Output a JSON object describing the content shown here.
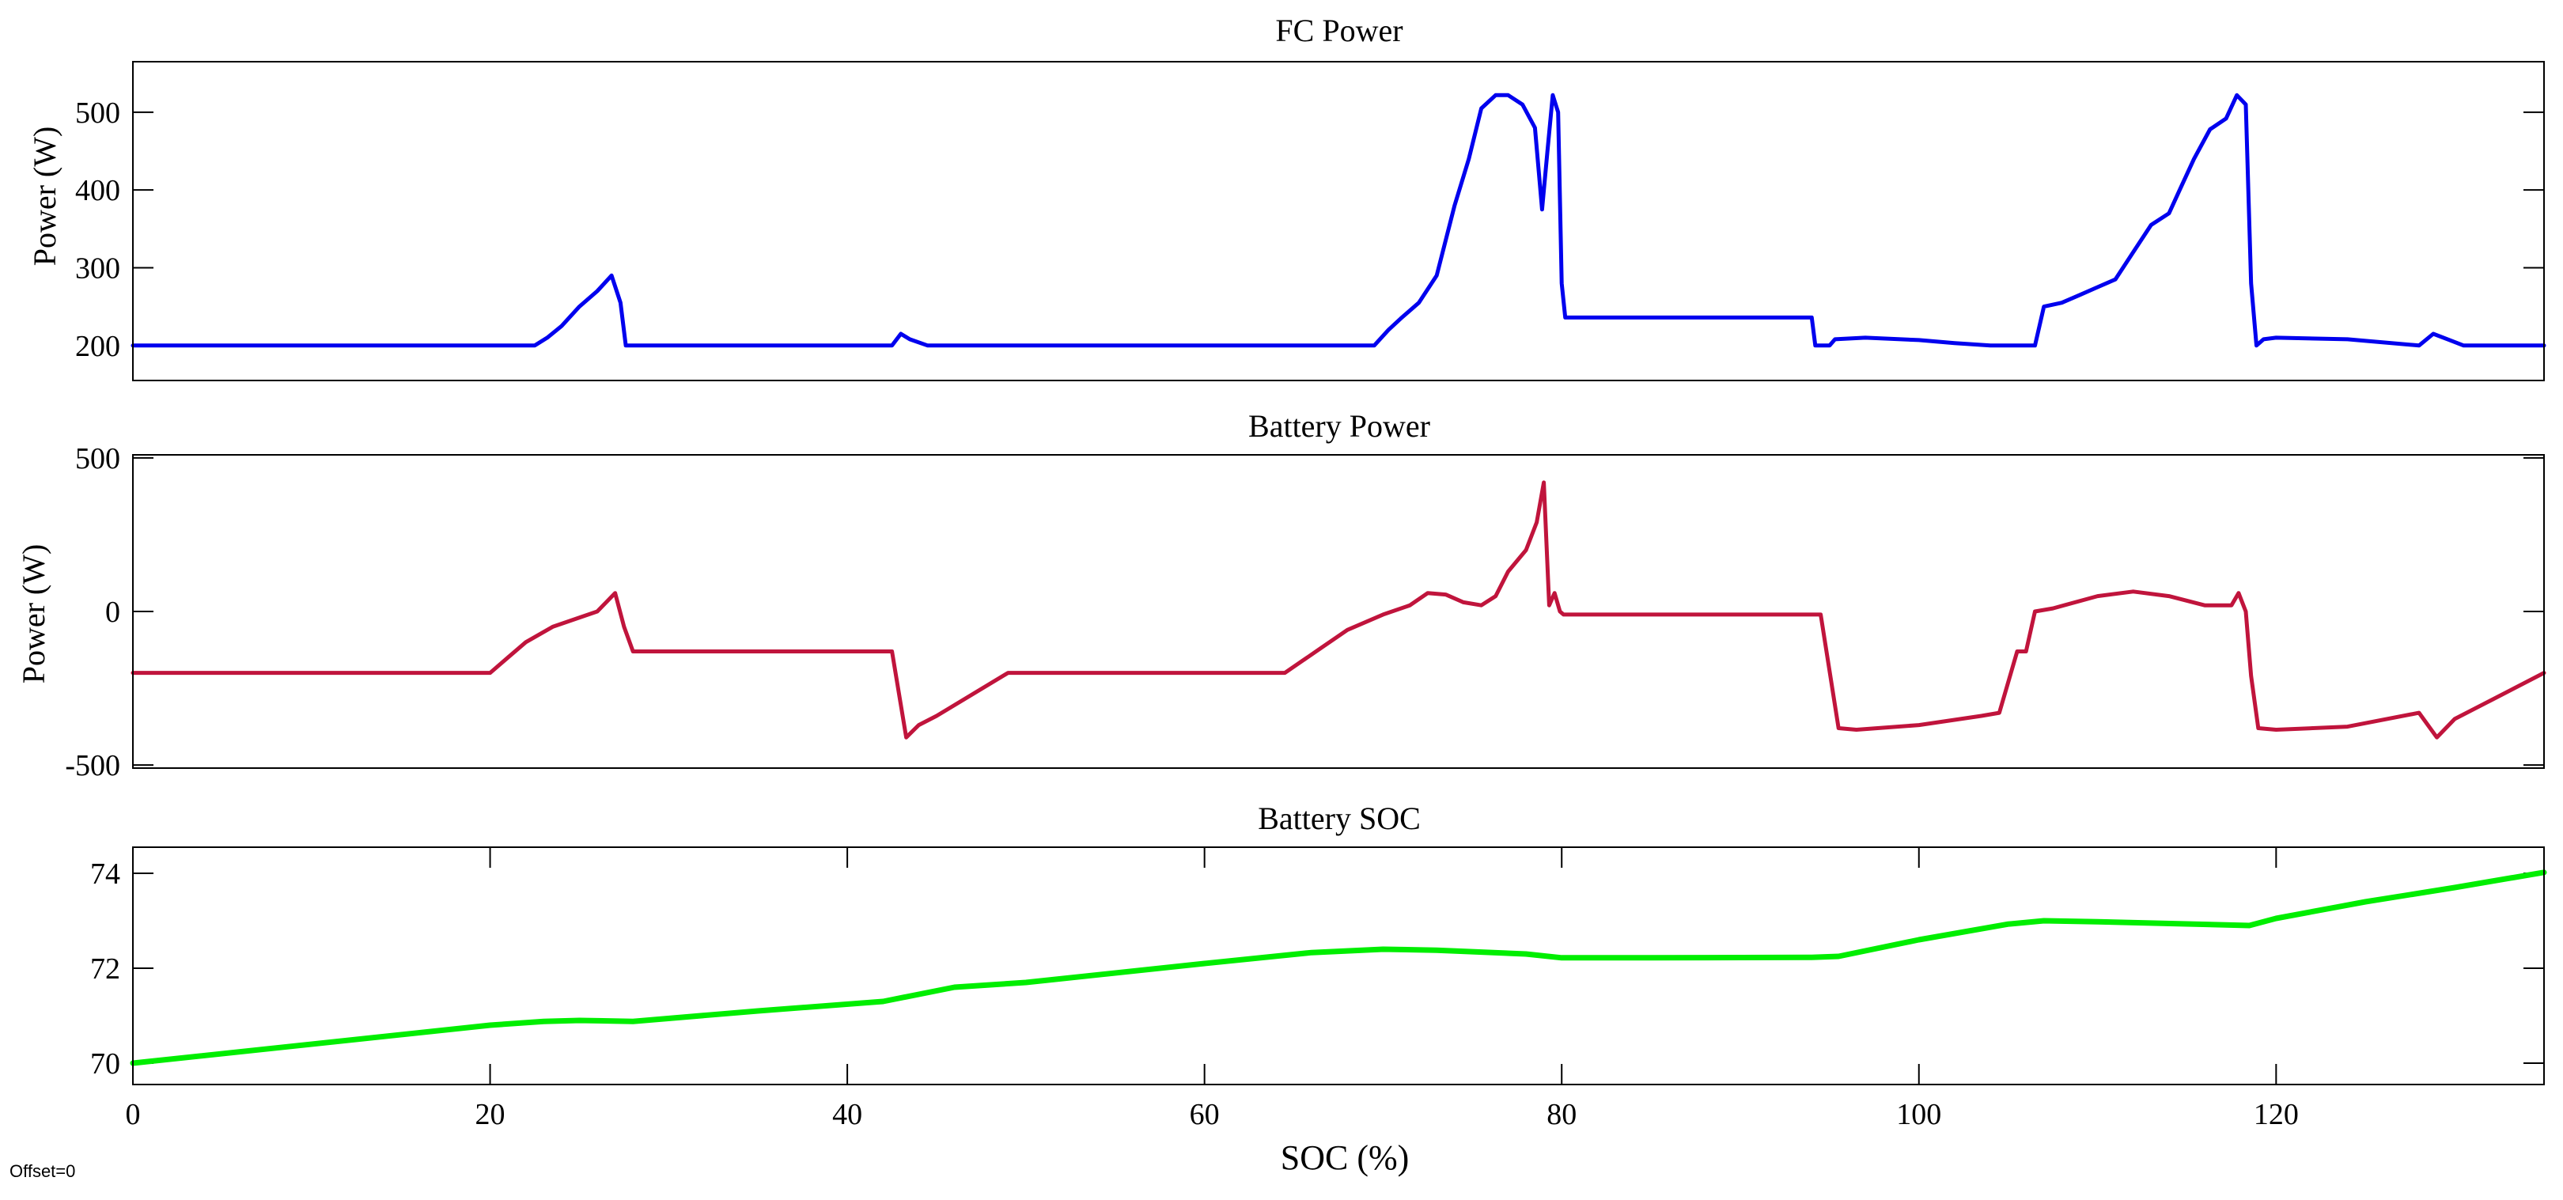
{
  "chart_data": [
    {
      "type": "line",
      "title": "FC Power",
      "ylabel": "Power (W)",
      "xlabel": "",
      "xlim": [
        0,
        135
      ],
      "ylim": [
        155,
        565
      ],
      "yticks": [
        200,
        300,
        400,
        500
      ],
      "x_tick_labels_shown": false,
      "color": "#0000ee",
      "series": [
        {
          "x": [
            0,
            22.5,
            23.2,
            24.0,
            25.0,
            26.0,
            26.8,
            27.3,
            27.6,
            30,
            42.5,
            43.0,
            43.5,
            44.5,
            46,
            60,
            69.5,
            70.3,
            71.0,
            72.0,
            73.0,
            74.0,
            74.8,
            75.5,
            76.3,
            77.0,
            77.8,
            78.5,
            78.9,
            79.2,
            79.5,
            79.8,
            80.0,
            80.2,
            85,
            94.0,
            94.2,
            95.0,
            95.3,
            97,
            100,
            102,
            104,
            106.5,
            107.0,
            108.0,
            109.0,
            110.0,
            111.0,
            112.0,
            113.0,
            114.0,
            114.6,
            115.4,
            116.3,
            117.2,
            117.8,
            118.3,
            118.6,
            118.9,
            119.3,
            120,
            124,
            128.0,
            128.8,
            129.6,
            130.5,
            135
          ],
          "y": [
            200,
            200,
            210,
            225,
            250,
            270,
            290,
            255,
            200,
            200,
            200,
            215,
            208,
            200,
            200,
            200,
            200,
            220,
            235,
            255,
            290,
            380,
            440,
            505,
            522,
            522,
            510,
            480,
            375,
            450,
            522,
            500,
            280,
            236,
            236,
            236,
            200,
            200,
            208,
            210,
            207,
            203,
            200,
            200,
            250,
            255,
            265,
            275,
            285,
            320,
            355,
            370,
            400,
            440,
            478,
            492,
            522,
            510,
            280,
            200,
            208,
            210,
            208,
            200,
            215,
            208,
            200,
            200
          ]
        }
      ]
    },
    {
      "type": "line",
      "title": "Battery Power",
      "ylabel": "Power (W)",
      "xlabel": "",
      "xlim": [
        0,
        135
      ],
      "ylim": [
        -510,
        510
      ],
      "yticks": [
        -500,
        0,
        500
      ],
      "x_tick_labels_shown": false,
      "color": "#c0143c",
      "series": [
        {
          "x": [
            0,
            20.0,
            21.0,
            22.0,
            23.5,
            25.0,
            26.0,
            27.0,
            27.5,
            28.0,
            42.5,
            43.3,
            44.0,
            45.0,
            49.0,
            64.5,
            65.5,
            66.5,
            68.0,
            70.0,
            71.5,
            72.5,
            73.5,
            74.5,
            75.5,
            76.3,
            77.0,
            78.0,
            78.6,
            79.0,
            79.3,
            79.6,
            79.9,
            80.1,
            80.5,
            94.5,
            95.5,
            96.5,
            100,
            103.5,
            104.5,
            105.5,
            106.0,
            106.5,
            107.5,
            110.0,
            112.0,
            114.0,
            116.0,
            117.5,
            117.9,
            118.3,
            118.6,
            119.0,
            120,
            124,
            128.0,
            129.0,
            130.0,
            132.0,
            135
          ],
          "y": [
            -200,
            -200,
            -150,
            -100,
            -50,
            -20,
            0,
            60,
            -50,
            -130,
            -130,
            -410,
            -370,
            -340,
            -200,
            -200,
            -160,
            -120,
            -60,
            -10,
            20,
            60,
            55,
            30,
            20,
            50,
            130,
            200,
            290,
            420,
            20,
            60,
            0,
            -10,
            -10,
            -10,
            -380,
            -385,
            -370,
            -340,
            -330,
            -130,
            -130,
            0,
            10,
            50,
            65,
            50,
            20,
            20,
            60,
            0,
            -210,
            -380,
            -385,
            -375,
            -330,
            -410,
            -350,
            -290,
            -200
          ]
        }
      ]
    },
    {
      "type": "line",
      "title": "Battery SOC",
      "ylabel": "",
      "xlabel": "SOC (%)",
      "xlim": [
        0,
        135
      ],
      "ylim": [
        69.55,
        74.55
      ],
      "yticks": [
        70,
        72,
        74
      ],
      "xticks": [
        0,
        20,
        40,
        60,
        80,
        100,
        120
      ],
      "color": "#00ee00",
      "series": [
        {
          "x": [
            0,
            20,
            23,
            25,
            28,
            35,
            42,
            46,
            50,
            60,
            66,
            70,
            73,
            78,
            80,
            85,
            94,
            95.5,
            100,
            105,
            107,
            110,
            118.5,
            120,
            125,
            130,
            135
          ],
          "y": [
            70.0,
            70.8,
            70.88,
            70.9,
            70.88,
            71.1,
            71.3,
            71.6,
            71.7,
            72.1,
            72.33,
            72.4,
            72.38,
            72.3,
            72.22,
            72.22,
            72.23,
            72.25,
            72.6,
            72.93,
            73.0,
            72.98,
            72.9,
            73.05,
            73.4,
            73.7,
            74.02
          ]
        }
      ]
    }
  ],
  "footer": {
    "offset_label": "Offset=0"
  }
}
